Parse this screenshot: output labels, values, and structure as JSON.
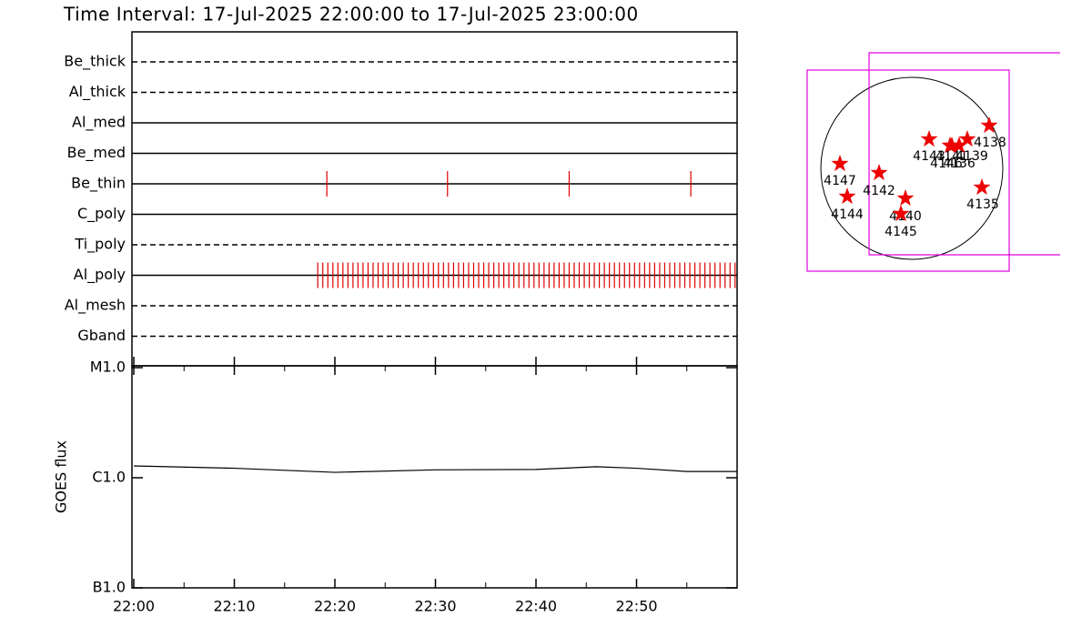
{
  "chart_data": [
    {
      "type": "timeline",
      "title": "Time Interval: 17-Jul-2025 22:00:00 to 17-Jul-2025 23:00:00",
      "xlim": [
        0,
        60
      ],
      "color": "#e00000",
      "rows": [
        {
          "name": "Be_thick",
          "style": "dashed",
          "times": []
        },
        {
          "name": "Al_thick",
          "style": "dashed",
          "times": []
        },
        {
          "name": "Al_med",
          "style": "solid",
          "times": []
        },
        {
          "name": "Be_med",
          "style": "solid",
          "times": []
        },
        {
          "name": "Be_thin",
          "style": "solid",
          "times": [
            19.2,
            31.2,
            43.3,
            55.4
          ]
        },
        {
          "name": "C_poly",
          "style": "solid",
          "times": []
        },
        {
          "name": "Ti_poly",
          "style": "dashed",
          "times": []
        },
        {
          "name": "Al_poly",
          "style": "solid",
          "times": [
            18.3,
            18.8,
            19.3,
            19.8,
            20.3,
            20.8,
            21.3,
            21.8,
            22.3,
            22.8,
            23.3,
            23.8,
            24.3,
            24.8,
            25.3,
            25.8,
            26.3,
            26.8,
            27.3,
            27.8,
            28.3,
            28.8,
            29.3,
            29.8,
            30.3,
            30.8,
            31.3,
            31.8,
            32.3,
            32.8,
            33.3,
            33.8,
            34.3,
            34.8,
            35.3,
            35.8,
            36.3,
            36.8,
            37.3,
            37.8,
            38.3,
            38.8,
            39.3,
            39.8,
            40.3,
            40.8,
            41.3,
            41.8,
            42.3,
            42.8,
            43.3,
            43.8,
            44.3,
            44.8,
            45.3,
            45.8,
            46.3,
            46.8,
            47.3,
            47.8,
            48.3,
            48.8,
            49.3,
            49.8,
            50.3,
            50.8,
            51.3,
            51.8,
            52.3,
            52.8,
            53.3,
            53.8,
            54.3,
            54.8,
            55.3,
            55.8,
            56.3,
            56.8,
            57.3,
            57.8,
            58.3,
            58.8,
            59.3,
            59.8
          ]
        },
        {
          "name": "Al_mesh",
          "style": "dashed",
          "times": []
        },
        {
          "name": "Gband",
          "style": "dashed",
          "times": []
        }
      ]
    },
    {
      "type": "line",
      "ylabel": "GOES flux",
      "log": true,
      "color": "#000000",
      "x": [
        0,
        10,
        20,
        30,
        40,
        46,
        50,
        55,
        60
      ],
      "values": [
        1.28e-06,
        1.22e-06,
        1.12e-06,
        1.18e-06,
        1.19e-06,
        1.26e-06,
        1.22e-06,
        1.14e-06,
        1.14e-06
      ],
      "xlim": [
        0,
        60
      ],
      "xticks": [
        {
          "value": 0,
          "label": "22:00"
        },
        {
          "value": 10,
          "label": "22:10"
        },
        {
          "value": 20,
          "label": "22:20"
        },
        {
          "value": 30,
          "label": "22:30"
        },
        {
          "value": 40,
          "label": "22:40"
        },
        {
          "value": 50,
          "label": "22:50"
        }
      ],
      "xminor": [
        5,
        15,
        25,
        35,
        45,
        55
      ],
      "ylim": [
        1e-07,
        1e-05
      ],
      "yticks": [
        {
          "value": 1e-05,
          "label": "M1.0"
        },
        {
          "value": 1e-06,
          "label": "C1.0"
        },
        {
          "value": 1e-07,
          "label": "B1.0"
        }
      ]
    },
    {
      "type": "map",
      "regions": [
        "4147",
        "4144",
        "4142",
        "4140",
        "4145",
        "4143",
        "4141",
        "4139",
        "4136",
        "4146",
        "4138",
        "4135"
      ]
    }
  ]
}
